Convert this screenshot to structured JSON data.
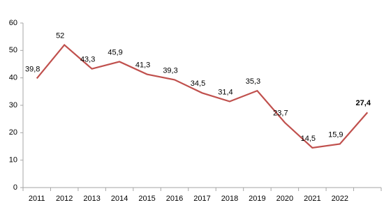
{
  "chart_data": {
    "type": "line",
    "categories": [
      "2011",
      "2012",
      "2013",
      "2014",
      "2015",
      "2016",
      "2017",
      "2018",
      "2019",
      "2020",
      "2021",
      "2022",
      null
    ],
    "series": [
      {
        "color": "#c0504d",
        "values": [
          39.8,
          52,
          43.3,
          45.9,
          41.3,
          39.3,
          34.5,
          31.4,
          35.3,
          23.7,
          14.5,
          15.9,
          27.4
        ],
        "value_labels": [
          "39,8",
          "52",
          "43,3",
          "45,9",
          "41,3",
          "39,3",
          "34,5",
          "31,4",
          "35,3",
          "23,7",
          "14,5",
          "15,9",
          "27,4"
        ]
      }
    ],
    "ylim": [
      0,
      60
    ],
    "yticks": [
      0,
      10,
      20,
      30,
      40,
      50,
      60
    ],
    "grid": false
  }
}
